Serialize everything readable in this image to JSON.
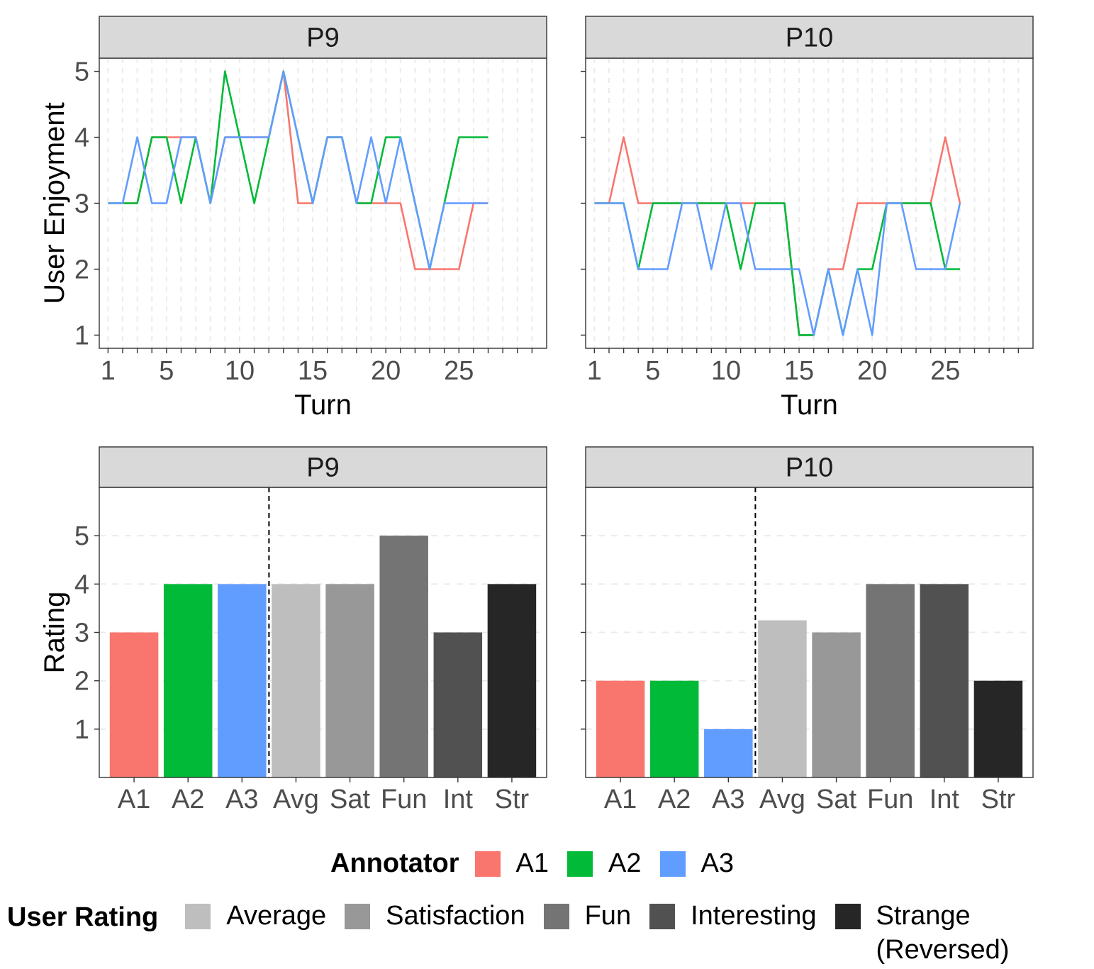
{
  "colors": {
    "A1": "#F8766D",
    "A2": "#00BA38",
    "A3": "#619CFF",
    "Average": "#BEBEBE",
    "Satisfaction": "#989898",
    "Fun": "#747474",
    "Interesting": "#515151",
    "Strange (Reversed)": "#262626",
    "strip": "#D9D9D9",
    "grid": "#EBEBEB"
  },
  "legend": {
    "annotator_title": "Annotator",
    "annotator_items": [
      "A1",
      "A2",
      "A3"
    ],
    "rating_title": "User Rating",
    "rating_items": [
      "Average",
      "Satisfaction",
      "Fun",
      "Interesting",
      "Strange\n(Reversed)"
    ]
  },
  "chart_data": [
    {
      "type": "line",
      "panel": "P9",
      "xlabel": "Turn",
      "ylabel": "User Enjoyment",
      "xlim": [
        0.4,
        31
      ],
      "ylim": [
        0.8,
        5.2
      ],
      "xticks": [
        1,
        5,
        10,
        15,
        20,
        25
      ],
      "yticks": [
        1,
        2,
        3,
        4,
        5
      ],
      "x": [
        1,
        2,
        3,
        4,
        5,
        6,
        7,
        8,
        9,
        10,
        11,
        12,
        13,
        14,
        15,
        16,
        17,
        18,
        19,
        20,
        21,
        22,
        23,
        24,
        25,
        26,
        27
      ],
      "series": [
        {
          "name": "A1",
          "values": [
            3,
            3,
            3,
            4,
            4,
            4,
            4,
            3,
            4,
            4,
            4,
            4,
            5,
            3,
            3,
            4,
            4,
            3,
            3,
            3,
            3,
            2,
            2,
            2,
            2,
            3,
            3
          ]
        },
        {
          "name": "A2",
          "values": [
            3,
            3,
            3,
            4,
            4,
            3,
            4,
            3,
            5,
            4,
            3,
            4,
            5,
            4,
            3,
            4,
            4,
            3,
            3,
            4,
            4,
            3,
            2,
            3,
            4,
            4,
            4
          ]
        },
        {
          "name": "A3",
          "values": [
            3,
            3,
            4,
            3,
            3,
            4,
            4,
            3,
            4,
            4,
            4,
            4,
            5,
            4,
            3,
            4,
            4,
            3,
            4,
            3,
            4,
            3,
            2,
            3,
            3,
            3,
            3
          ]
        }
      ]
    },
    {
      "type": "line",
      "panel": "P10",
      "xlabel": "Turn",
      "ylabel": "",
      "xlim": [
        0.4,
        31
      ],
      "ylim": [
        0.8,
        5.2
      ],
      "xticks": [
        1,
        5,
        10,
        15,
        20,
        25
      ],
      "yticks": [
        1,
        2,
        3,
        4,
        5
      ],
      "x": [
        1,
        2,
        3,
        4,
        5,
        6,
        7,
        8,
        9,
        10,
        11,
        12,
        13,
        14,
        15,
        16,
        17,
        18,
        19,
        20,
        21,
        22,
        23,
        24,
        25,
        26
      ],
      "series": [
        {
          "name": "A1",
          "values": [
            3,
            3,
            4,
            3,
            3,
            3,
            3,
            3,
            3,
            3,
            3,
            3,
            3,
            3,
            1,
            1,
            2,
            2,
            3,
            3,
            3,
            3,
            3,
            3,
            4,
            3
          ]
        },
        {
          "name": "A2",
          "values": [
            3,
            3,
            3,
            2,
            3,
            3,
            3,
            3,
            3,
            3,
            2,
            3,
            3,
            3,
            1,
            1,
            2,
            1,
            2,
            2,
            3,
            3,
            3,
            3,
            2,
            2
          ]
        },
        {
          "name": "A3",
          "values": [
            3,
            3,
            3,
            2,
            2,
            2,
            3,
            3,
            2,
            3,
            3,
            2,
            2,
            2,
            2,
            1,
            2,
            1,
            2,
            1,
            3,
            3,
            2,
            2,
            2,
            3
          ]
        }
      ]
    },
    {
      "type": "bar",
      "panel": "P9",
      "ylabel": "Rating",
      "categories": [
        "A1",
        "A2",
        "A3",
        "Avg",
        "Sat",
        "Fun",
        "Int",
        "Str"
      ],
      "values": [
        3,
        4,
        4,
        4,
        4,
        5,
        3,
        4
      ],
      "fills": [
        "A1",
        "A2",
        "A3",
        "Average",
        "Satisfaction",
        "Fun",
        "Interesting",
        "Strange (Reversed)"
      ],
      "yticks": [
        1,
        2,
        3,
        4,
        5
      ],
      "ylim": [
        0,
        6
      ]
    },
    {
      "type": "bar",
      "panel": "P10",
      "ylabel": "",
      "categories": [
        "A1",
        "A2",
        "A3",
        "Avg",
        "Sat",
        "Fun",
        "Int",
        "Str"
      ],
      "values": [
        2,
        2,
        1,
        3.25,
        3,
        4,
        4,
        2
      ],
      "fills": [
        "A1",
        "A2",
        "A3",
        "Average",
        "Satisfaction",
        "Fun",
        "Interesting",
        "Strange (Reversed)"
      ],
      "yticks": [
        1,
        2,
        3,
        4,
        5
      ],
      "ylim": [
        0,
        6
      ]
    }
  ]
}
